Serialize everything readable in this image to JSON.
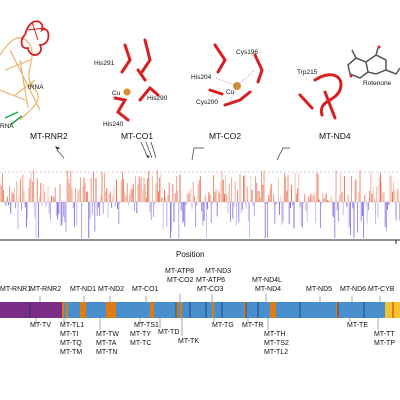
{
  "structures": [
    {
      "name": "MT-RNR2",
      "residues": [
        "tRNA",
        "RNA"
      ]
    },
    {
      "name": "MT-CO1",
      "residues": [
        "His291",
        "His290",
        "Cu",
        "His240"
      ]
    },
    {
      "name": "MT-CO2",
      "residues": [
        "Cys196",
        "His204",
        "Cu",
        "Cys200"
      ]
    },
    {
      "name": "MT-ND4",
      "residues": [
        "Trp215",
        "Rotenone"
      ]
    }
  ],
  "xaxis": {
    "label": "Position"
  },
  "genome_map": {
    "top_labels": [
      "MT-RNR1",
      "MT-RNR2",
      "MT-ND1",
      "MT-ND2",
      "MT-CO1",
      "MT-ATP8",
      "MT-CO2",
      "MT-ATP6",
      "MT-CO3",
      "MT-ND3",
      "MT-ND4L",
      "MT-ND4",
      "MT-ND5",
      "MT-ND6",
      "MT-CYB"
    ],
    "bottom_labels": [
      "MT-TV",
      "MT-TL1",
      "MT-TI",
      "MT-TQ",
      "MT-TM",
      "MT-TW",
      "MT-TA",
      "MT-TN",
      "MT-TS1",
      "MT-TY",
      "MT-TC",
      "MT-TD",
      "MT-TK",
      "MT-TG",
      "MT-TR",
      "MT-TH",
      "MT-TS2",
      "MT-TL2",
      "MT-TE",
      "MT-TT",
      "MT-TP"
    ]
  },
  "colors": {
    "rrna": "#7a2d86",
    "coding": "#4a8fcd",
    "trna": "#e07b14",
    "cytb_end": "#f2c230",
    "score_high": "#e5532e",
    "score_low": "#6a4fe0",
    "structure": "#d91f1f"
  }
}
